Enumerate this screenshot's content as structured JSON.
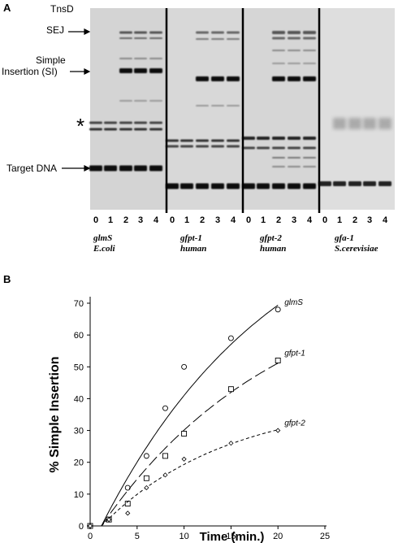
{
  "panel_a": {
    "letter": "A",
    "tnsd_label": "TnsD",
    "labels": {
      "sej": "SEJ",
      "simple_line1": "Simple",
      "simple_line2": "Insertion (SI)",
      "star": "*",
      "target": "Target DNA"
    },
    "gels": [
      {
        "lanes": [
          "0",
          "1",
          "2",
          "3",
          "4"
        ],
        "caption": [
          "glmS",
          "E.coli"
        ]
      },
      {
        "lanes": [
          "0",
          "1",
          "2",
          "3",
          "4"
        ],
        "caption": [
          "gfpt-1",
          "human"
        ]
      },
      {
        "lanes": [
          "0",
          "1",
          "2",
          "3",
          "4"
        ],
        "caption": [
          "gfpt-2",
          "human"
        ]
      },
      {
        "lanes": [
          "0",
          "1",
          "2",
          "3",
          "4"
        ],
        "caption": [
          "gfa-1",
          "S.cerevisiae"
        ]
      }
    ]
  },
  "panel_b": {
    "letter": "B"
  },
  "chart_data": {
    "type": "scatter",
    "title": "",
    "xlabel": "Time (min.)",
    "ylabel": "% Simple Insertion",
    "xlim": [
      0,
      25
    ],
    "ylim": [
      0,
      70
    ],
    "xticks": [
      0,
      5,
      10,
      15,
      20,
      25
    ],
    "yticks": [
      0,
      10,
      20,
      30,
      40,
      50,
      60,
      70
    ],
    "grid": false,
    "series": [
      {
        "name": "glmS",
        "marker": "circle",
        "line": "solid",
        "x": [
          0,
          2,
          4,
          6,
          8,
          10,
          15,
          20
        ],
        "y": [
          0,
          2,
          12,
          22,
          37,
          50,
          59,
          68
        ]
      },
      {
        "name": "gfpt-1",
        "marker": "square",
        "line": "long-dash",
        "x": [
          0,
          2,
          4,
          6,
          8,
          10,
          15,
          20
        ],
        "y": [
          0,
          2,
          7,
          15,
          22,
          29,
          43,
          52
        ]
      },
      {
        "name": "gfpt-2",
        "marker": "diamond",
        "line": "short-dash",
        "x": [
          0,
          2,
          4,
          6,
          8,
          10,
          15,
          20
        ],
        "y": [
          0,
          2,
          4,
          12,
          16,
          21,
          26,
          30
        ]
      }
    ]
  }
}
